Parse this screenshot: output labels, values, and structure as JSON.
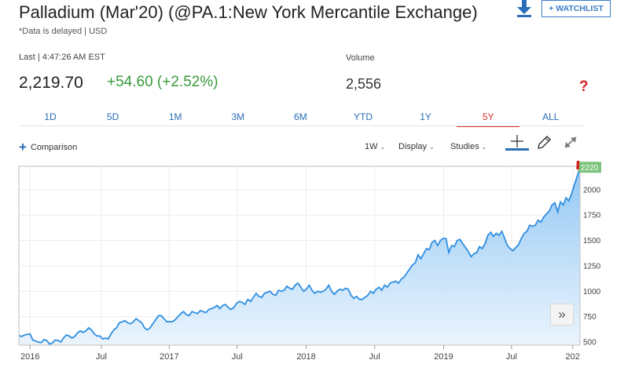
{
  "header": {
    "title": "Palladium (Mar'20) (@PA.1:New York Mercantile Exchange)",
    "delay_note": "*Data is delayed | USD",
    "watchlist_label": "+ WATCHLIST",
    "download_icon": "download-icon"
  },
  "quote": {
    "last_label": "Last | 4:47:26 AM EST",
    "price": "2,219.70",
    "change": "+54.60 (+2.52%)",
    "volume_label": "Volume",
    "volume": "2,556",
    "change_color": "#3a9a3a"
  },
  "annotation": {
    "question_mark": "?",
    "arrow_color": "#d92020"
  },
  "ranges": [
    {
      "label": "1D",
      "active": false
    },
    {
      "label": "5D",
      "active": false
    },
    {
      "label": "1M",
      "active": false
    },
    {
      "label": "3M",
      "active": false
    },
    {
      "label": "6M",
      "active": false
    },
    {
      "label": "YTD",
      "active": false
    },
    {
      "label": "1Y",
      "active": false
    },
    {
      "label": "5Y",
      "active": true
    },
    {
      "label": "ALL",
      "active": false
    }
  ],
  "toolbar": {
    "comparison_label": "Comparison",
    "interval_label": "1W",
    "display_label": "Display",
    "studies_label": "Studies",
    "caret": "⌄"
  },
  "chart_data": {
    "type": "area",
    "x_tick_labels": [
      "2016",
      "Jul",
      "2017",
      "Jul",
      "2018",
      "Jul",
      "2019",
      "Jul",
      "202"
    ],
    "y_ticks": [
      500,
      750,
      1000,
      1250,
      1500,
      1750,
      2000
    ],
    "y_tick_labels": [
      "500",
      "750",
      "1000",
      "1250",
      "1500",
      "1750",
      "2000"
    ],
    "ylim": [
      470,
      2230
    ],
    "last_value_label": "2220",
    "line_color": "#2f8ee0",
    "last_badge_color": "#7cc47c",
    "series": [
      {
        "values": [
          565,
          555,
          570,
          575,
          580,
          520,
          510,
          500,
          495,
          525,
          515,
          480,
          490,
          520,
          515,
          500,
          540,
          570,
          560,
          540,
          555,
          590,
          610,
          595,
          610,
          640,
          620,
          580,
          560,
          560,
          530,
          540,
          530,
          580,
          620,
          640,
          690,
          700,
          710,
          690,
          680,
          700,
          730,
          710,
          690,
          640,
          620,
          640,
          680,
          720,
          760,
          760,
          730,
          700,
          700,
          700,
          720,
          750,
          780,
          800,
          770,
          760,
          800,
          790,
          780,
          810,
          800,
          790,
          820,
          830,
          840,
          860,
          830,
          860,
          870,
          840,
          820,
          840,
          880,
          900,
          890,
          870,
          920,
          900,
          940,
          980,
          950,
          940,
          980,
          990,
          1000,
          970,
          960,
          1010,
          1000,
          1010,
          1050,
          1030,
          1020,
          1060,
          1080,
          1040,
          1000,
          1020,
          1060,
          1010,
          980,
          1000,
          990,
          1000,
          1020,
          1060,
          1000,
          970,
          1000,
          1020,
          1010,
          1030,
          1020,
          960,
          930,
          950,
          920,
          920,
          940,
          960,
          1000,
          980,
          1020,
          1040,
          1010,
          1060,
          1040,
          1080,
          1090,
          1100,
          1080,
          1120,
          1140,
          1180,
          1220,
          1260,
          1280,
          1360,
          1320,
          1370,
          1420,
          1410,
          1480,
          1500,
          1450,
          1500,
          1520,
          1520,
          1380,
          1450,
          1440,
          1500,
          1510,
          1470,
          1430,
          1390,
          1340,
          1370,
          1380,
          1440,
          1420,
          1470,
          1550,
          1580,
          1540,
          1570,
          1550,
          1590,
          1520,
          1450,
          1420,
          1400,
          1430,
          1460,
          1520,
          1570,
          1590,
          1650,
          1640,
          1650,
          1700,
          1680,
          1730,
          1760,
          1790,
          1850,
          1870,
          1780,
          1880,
          1850,
          1920,
          1890,
          1960,
          2050,
          2130,
          2220
        ]
      }
    ]
  }
}
